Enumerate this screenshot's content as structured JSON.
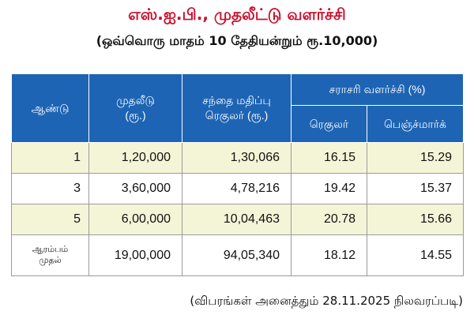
{
  "title": "எஸ்.ஐ.பி., முதலீட்டு வளர்ச்சி",
  "subtitle": "(ஒவ்வொரு மாதம் 10 தேதியன்றும் ரூ.10,000)",
  "table": {
    "headers": {
      "year": "ஆண்டு",
      "investment_line1": "முதலீடு",
      "investment_line2": "(ரூ.)",
      "market_value_line1": "சந்தை மதிப்பு",
      "market_value_line2": "ரெகுலர் (ரூ.)",
      "avg_growth": "சராசரி வளர்ச்சி (%)",
      "regular": "ரெகுலர்",
      "benchmark": "பெஞ்ச்மார்க்"
    },
    "rows": [
      {
        "year": "1",
        "investment": "1,20,000",
        "market_value": "1,30,066",
        "regular": "16.15",
        "benchmark": "15.29"
      },
      {
        "year": "3",
        "investment": "3,60,000",
        "market_value": "4,78,216",
        "regular": "19.42",
        "benchmark": "15.37"
      },
      {
        "year": "5",
        "investment": "6,00,000",
        "market_value": "10,04,463",
        "regular": "20.78",
        "benchmark": "15.66"
      },
      {
        "year_line1": "ஆரம்பம்",
        "year_line2": "முதல்",
        "investment": "19,00,000",
        "market_value": "94,05,340",
        "regular": "18.12",
        "benchmark": "14.55"
      }
    ]
  },
  "footer": "(விபரங்கள் அனைத்தும் 28.11.2025 நிலவரப்படி)"
}
